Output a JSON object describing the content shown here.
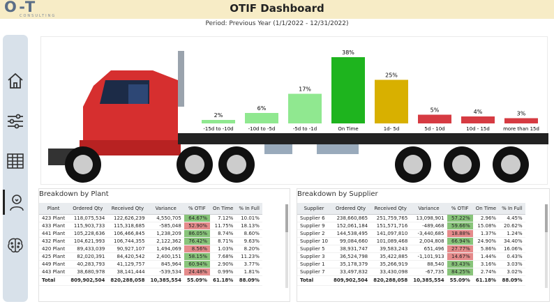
{
  "header": {
    "logo_text": "O-T",
    "logo_sub": "CONSULTING",
    "title": "OTIF Dashboard",
    "period": "Period: Previous Year (1/1/2022 - 12/31/2022)"
  },
  "sidebar": {
    "items": [
      {
        "name": "home-icon"
      },
      {
        "name": "sliders-icon"
      },
      {
        "name": "table-icon"
      },
      {
        "name": "person-bulb-icon",
        "active": true
      },
      {
        "name": "brain-icon"
      }
    ]
  },
  "chart_data": {
    "type": "bar",
    "categories": [
      "-15d to -10d",
      "-10d to -5d",
      "-5d to -1d",
      "On Time",
      "1d- 5d",
      "5d - 10d",
      "10d - 15d",
      "more than 15d"
    ],
    "values": [
      2,
      6,
      17,
      38,
      25,
      5,
      4,
      3
    ],
    "value_labels": [
      "2%",
      "6%",
      "17%",
      "38%",
      "25%",
      "5%",
      "4%",
      "3%"
    ],
    "colors": [
      "#90e890",
      "#90e890",
      "#90e890",
      "#1eb41e",
      "#d8b000",
      "#d63b42",
      "#d63b42",
      "#d63b42"
    ],
    "ylim": [
      0,
      40
    ],
    "title": "",
    "xlabel": "",
    "ylabel": ""
  },
  "plant": {
    "title": "Breakdown by Plant",
    "headers": [
      "Plant",
      "Ordered Qty",
      "Received Qty",
      "Variance",
      "% OTIF",
      "On Time",
      "% In Full"
    ],
    "rows": [
      [
        "423 Plant",
        "118,075,534",
        "122,626,239",
        "4,550,705",
        "64.67%",
        "7.12%",
        "10.01%",
        "g"
      ],
      [
        "433 Plant",
        "115,903,733",
        "115,318,685",
        "-585,048",
        "52.90%",
        "11.75%",
        "18.13%",
        "r"
      ],
      [
        "441 Plant",
        "105,228,636",
        "106,466,845",
        "1,238,209",
        "86.05%",
        "8.74%",
        "8.60%",
        "g"
      ],
      [
        "432 Plant",
        "104,621,993",
        "106,744,355",
        "2,122,362",
        "76.42%",
        "8.71%",
        "9.63%",
        "g"
      ],
      [
        "420 Plant",
        "89,433,039",
        "90,927,107",
        "1,494,069",
        "8.56%",
        "1.03%",
        "8.20%",
        "r"
      ],
      [
        "425 Plant",
        "82,020,391",
        "84,420,542",
        "2,400,151",
        "58.15%",
        "7.68%",
        "11.23%",
        "g"
      ],
      [
        "449 Plant",
        "40,283,793",
        "41,129,757",
        "845,964",
        "60.94%",
        "2.90%",
        "3.77%",
        "g"
      ],
      [
        "443 Plant",
        "38,680,978",
        "38,141,444",
        "-539,534",
        "24.48%",
        "0.99%",
        "1.81%",
        "r"
      ]
    ],
    "total": [
      "Total",
      "809,902,504",
      "820,288,058",
      "10,385,554",
      "55.09%",
      "61.18%",
      "88.09%"
    ]
  },
  "supplier": {
    "title": "Breakdown by Supplier",
    "headers": [
      "Supplier",
      "Ordered Qty",
      "Received Qty",
      "Variance",
      "% OTIF",
      "On Time",
      "% In Full"
    ],
    "rows": [
      [
        "Supplier 6",
        "238,660,865",
        "251,759,765",
        "13,098,901",
        "57.22%",
        "2.96%",
        "4.45%",
        "g"
      ],
      [
        "Supplier 9",
        "152,061,184",
        "151,571,716",
        "-489,468",
        "59.66%",
        "15.08%",
        "20.62%",
        "g"
      ],
      [
        "Supplier 2",
        "144,538,495",
        "141,097,810",
        "-3,440,685",
        "18.88%",
        "1.37%",
        "1.24%",
        "r"
      ],
      [
        "Supplier 10",
        "99,084,660",
        "101,089,468",
        "2,004,808",
        "66.94%",
        "24.90%",
        "34.40%",
        "g"
      ],
      [
        "Supplier 5",
        "38,931,747",
        "39,583,243",
        "651,496",
        "27.77%",
        "5.86%",
        "16.06%",
        "r"
      ],
      [
        "Supplier 3",
        "36,524,798",
        "35,422,885",
        "-1,101,913",
        "14.67%",
        "1.44%",
        "0.43%",
        "r"
      ],
      [
        "Supplier 1",
        "35,178,379",
        "35,266,919",
        "88,540",
        "83.43%",
        "3.16%",
        "3.03%",
        "g"
      ],
      [
        "Supplier 7",
        "33,497,832",
        "33,430,098",
        "-67,735",
        "84.25%",
        "2.74%",
        "3.02%",
        "g"
      ]
    ],
    "total": [
      "Total",
      "809,902,504",
      "820,288,058",
      "10,385,554",
      "55.09%",
      "61.18%",
      "88.09%"
    ]
  }
}
